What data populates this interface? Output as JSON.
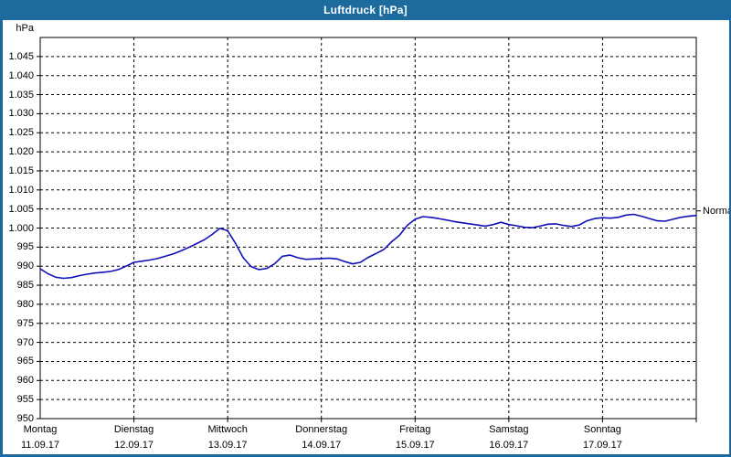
{
  "window": {
    "title": "Luftdruck [hPa]"
  },
  "colors": {
    "titlebar": "#1d6b9e",
    "border": "#1d6b9e",
    "line": "#1010b8",
    "grid": "#000000",
    "text": "#000000",
    "background": "#ffffff",
    "title_text": "#ffffff"
  },
  "chart_data": {
    "type": "line",
    "title": "Luftdruck [hPa]",
    "unit": "hPa",
    "ylabel": "hPa",
    "xlabel": "",
    "ylim": [
      950,
      1050
    ],
    "ytick_step": 5,
    "ytick_labels": [
      "1.045",
      "1.040",
      "1.035",
      "1.030",
      "1.025",
      "1.020",
      "1.015",
      "1.010",
      "1.005",
      "1.000",
      "995",
      "990",
      "985",
      "980",
      "975",
      "970",
      "965",
      "960",
      "955",
      "950"
    ],
    "x_days": [
      {
        "name": "Montag",
        "date": "11.09.17"
      },
      {
        "name": "Dienstag",
        "date": "12.09.17"
      },
      {
        "name": "Mittwoch",
        "date": "13.09.17"
      },
      {
        "name": "Donnerstag",
        "date": "14.09.17"
      },
      {
        "name": "Freitag",
        "date": "15.09.17"
      },
      {
        "name": "Samstag",
        "date": "16.09.17"
      },
      {
        "name": "Sonntag",
        "date": "17.09.17"
      }
    ],
    "grid": "dashed",
    "legend": "none",
    "annotation": {
      "label": "Normal",
      "value": 1004.5
    },
    "sample_interval_hours": 2,
    "series": [
      {
        "name": "Luftdruck",
        "color": "#1010b8",
        "values": [
          989.3,
          988.0,
          987.1,
          986.8,
          987.0,
          987.5,
          987.9,
          988.2,
          988.4,
          988.6,
          989.1,
          990.0,
          991.0,
          991.3,
          991.6,
          992.0,
          992.6,
          993.2,
          994.0,
          994.9,
          995.9,
          996.9,
          998.3,
          999.9,
          999.3,
          996.0,
          992.2,
          989.9,
          989.1,
          989.4,
          990.6,
          992.6,
          992.9,
          992.2,
          991.8,
          991.9,
          992.0,
          992.1,
          991.9,
          991.2,
          990.6,
          991.0,
          992.3,
          993.3,
          994.4,
          996.4,
          998.1,
          1000.7,
          1002.3,
          1003.0,
          1002.8,
          1002.5,
          1002.1,
          1001.7,
          1001.4,
          1001.1,
          1000.8,
          1000.5,
          1000.9,
          1001.5,
          1000.9,
          1000.6,
          1000.2,
          1000.1,
          1000.5,
          1001.0,
          1001.1,
          1000.7,
          1000.4,
          1000.8,
          1001.9,
          1002.5,
          1002.7,
          1002.6,
          1002.8,
          1003.4,
          1003.6,
          1003.1,
          1002.5,
          1001.9,
          1001.8,
          1002.3,
          1002.8,
          1003.1,
          1003.3
        ]
      }
    ]
  }
}
